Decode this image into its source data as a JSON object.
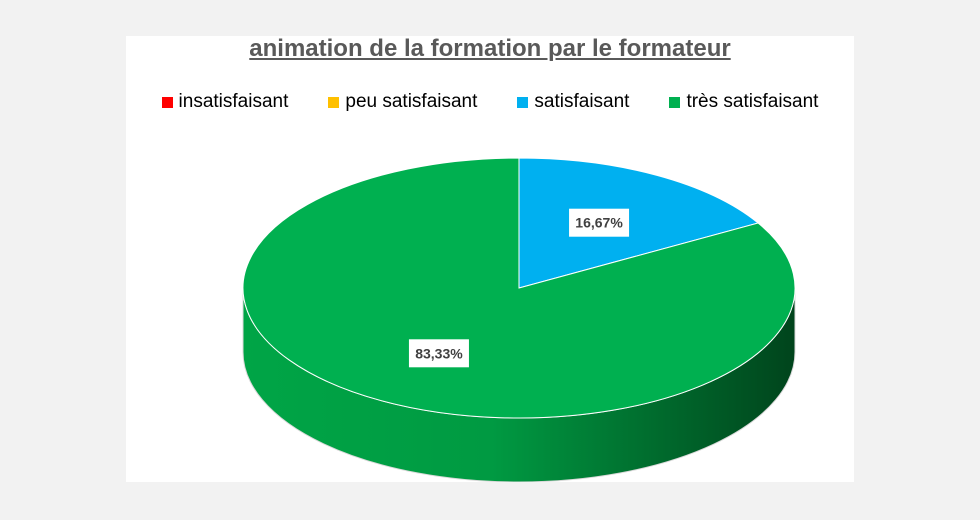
{
  "chart_data": {
    "type": "pie",
    "title": "animation de la formation par le formateur",
    "categories": [
      "insatisfaisant",
      "peu satisfaisant",
      "satisfaisant",
      "très satisfaisant"
    ],
    "values": [
      0,
      0,
      16.67,
      83.33
    ],
    "data_labels": [
      "",
      "",
      "16,67%",
      "83,33%"
    ],
    "colors": [
      "#ff0000",
      "#ffc000",
      "#00b0f0",
      "#00b050"
    ],
    "legend_position": "top",
    "style": "3d-pie"
  }
}
